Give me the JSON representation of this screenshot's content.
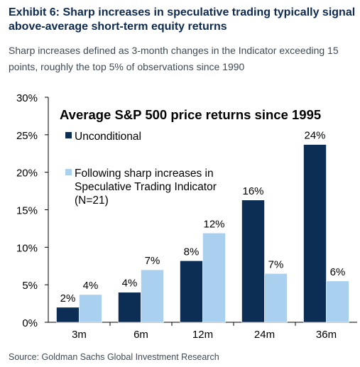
{
  "exhibit": {
    "title": "Exhibit 6: Sharp increases in speculative trading typically signal above-average short-term equity returns",
    "subtitle": "Sharp increases defined as 3-month changes in the Indicator exceeding 15 points, roughly the top 5% of observations since 1990",
    "source": "Source: Goldman Sachs Global Investment Research"
  },
  "colors": {
    "unconditional": "#0c2d54",
    "following": "#a9d0ef",
    "title_text": "#0d2a4e",
    "subtitle_text": "#3f4a56"
  },
  "chart_data": {
    "type": "bar",
    "title": "Average S&P 500 price returns since 1995",
    "categories": [
      "3m",
      "6m",
      "12m",
      "24m",
      "36m"
    ],
    "series": [
      {
        "name": "Unconditional",
        "values": [
          2.0,
          4.0,
          8.2,
          16.3,
          23.7
        ],
        "labels": [
          "2%",
          "4%",
          "8%",
          "16%",
          "24%"
        ]
      },
      {
        "name": "Following sharp increases in Speculative Trading Indicator (N=21)",
        "values": [
          3.7,
          7.0,
          11.9,
          6.5,
          5.5
        ],
        "labels": [
          "4%",
          "7%",
          "12%",
          "7%",
          "6%"
        ]
      }
    ],
    "ylim": [
      0,
      30
    ],
    "yticks": [
      0,
      5,
      10,
      15,
      20,
      25,
      30
    ],
    "ytick_labels": [
      "0%",
      "5%",
      "10%",
      "15%",
      "20%",
      "25%",
      "30%"
    ],
    "xlabel": "",
    "ylabel": "",
    "grid": false,
    "legend_position": "top-left"
  }
}
